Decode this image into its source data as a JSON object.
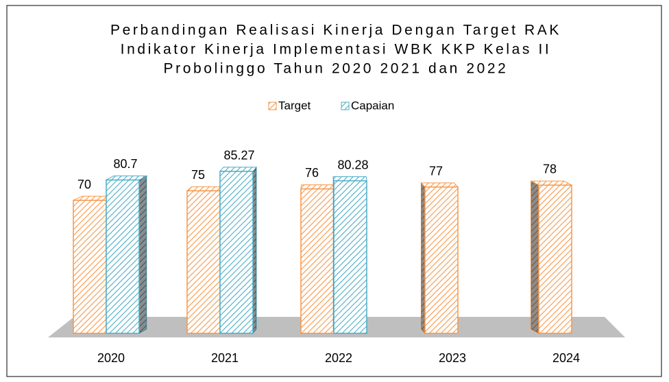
{
  "chart_data": {
    "type": "bar3d",
    "title": [
      "Perbandingan Realisasi Kinerja Dengan Target RAK",
      "Indikator Kinerja Implementasi WBK KKP Kelas II",
      "Probolinggo Tahun 2020 2021 dan 2022"
    ],
    "categories": [
      "2020",
      "2021",
      "2022",
      "2023",
      "2024"
    ],
    "series": [
      {
        "name": "Target",
        "color": "#f79646",
        "values": [
          70,
          75,
          76,
          77,
          78
        ]
      },
      {
        "name": "Capaian",
        "color": "#4bacc6",
        "values": [
          80.7,
          85.27,
          80.28,
          null,
          null
        ]
      }
    ],
    "ylim": [
      0,
      100
    ],
    "legend": "top"
  }
}
